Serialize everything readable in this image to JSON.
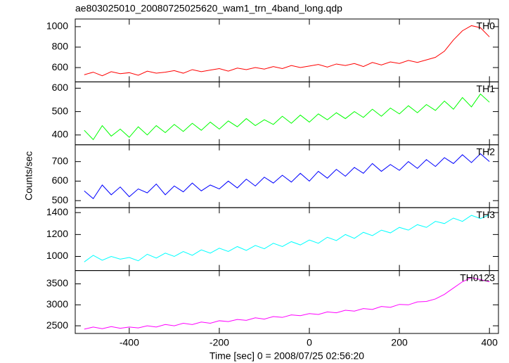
{
  "title": "ae803025010_20080725025620_wam1_trn_4band_long.qdp",
  "x_label": "Time [sec] 0 = 2008/07/25 02:56:20",
  "y_label": "Counts/sec",
  "chart_data": [
    {
      "type": "line",
      "xlim": [
        -520,
        420
      ],
      "ylim": [
        460,
        1075
      ],
      "xticks": [
        -400,
        -200,
        0,
        200,
        400
      ],
      "yticks": [
        600,
        800,
        1000
      ],
      "x": [
        -500,
        -480,
        -460,
        -440,
        -420,
        -400,
        -380,
        -360,
        -340,
        -320,
        -300,
        -280,
        -260,
        -240,
        -220,
        -200,
        -180,
        -160,
        -140,
        -120,
        -100,
        -80,
        -60,
        -40,
        -20,
        0,
        20,
        40,
        60,
        80,
        100,
        120,
        140,
        160,
        180,
        200,
        220,
        240,
        260,
        280,
        300,
        320,
        340,
        360,
        380,
        400
      ],
      "series": [
        {
          "name": "TH0",
          "color": "#ff0000",
          "values": [
            530,
            555,
            520,
            560,
            540,
            550,
            525,
            565,
            545,
            555,
            570,
            545,
            580,
            560,
            575,
            590,
            565,
            595,
            580,
            600,
            585,
            610,
            590,
            620,
            600,
            615,
            630,
            605,
            635,
            620,
            640,
            610,
            650,
            625,
            655,
            640,
            670,
            650,
            675,
            700,
            760,
            870,
            960,
            1010,
            990,
            900
          ]
        }
      ]
    },
    {
      "type": "line",
      "xlim": [
        -520,
        420
      ],
      "ylim": [
        358,
        627
      ],
      "xticks": [
        -400,
        -200,
        0,
        200,
        400
      ],
      "yticks": [
        400,
        500,
        600
      ],
      "x": [
        -500,
        -480,
        -460,
        -440,
        -420,
        -400,
        -380,
        -360,
        -340,
        -320,
        -300,
        -280,
        -260,
        -240,
        -220,
        -200,
        -180,
        -160,
        -140,
        -120,
        -100,
        -80,
        -60,
        -40,
        -20,
        0,
        20,
        40,
        60,
        80,
        100,
        120,
        140,
        160,
        180,
        200,
        220,
        240,
        260,
        280,
        300,
        320,
        340,
        360,
        380,
        400
      ],
      "series": [
        {
          "name": "TH1",
          "color": "#00ff00",
          "values": [
            420,
            380,
            440,
            395,
            425,
            390,
            435,
            400,
            440,
            410,
            445,
            415,
            450,
            420,
            455,
            425,
            460,
            435,
            470,
            440,
            465,
            445,
            480,
            450,
            485,
            455,
            490,
            465,
            495,
            470,
            500,
            475,
            510,
            480,
            515,
            490,
            525,
            495,
            530,
            505,
            545,
            510,
            560,
            520,
            575,
            540
          ]
        }
      ]
    },
    {
      "type": "line",
      "xlim": [
        -520,
        420
      ],
      "ylim": [
        464,
        786
      ],
      "xticks": [
        -400,
        -200,
        0,
        200,
        400
      ],
      "yticks": [
        500,
        600,
        700
      ],
      "x": [
        -500,
        -480,
        -460,
        -440,
        -420,
        -400,
        -380,
        -360,
        -340,
        -320,
        -300,
        -280,
        -260,
        -240,
        -220,
        -200,
        -180,
        -160,
        -140,
        -120,
        -100,
        -80,
        -60,
        -40,
        -20,
        0,
        20,
        40,
        60,
        80,
        100,
        120,
        140,
        160,
        180,
        200,
        220,
        240,
        260,
        280,
        300,
        320,
        340,
        360,
        380,
        400
      ],
      "series": [
        {
          "name": "TH2",
          "color": "#0000ff",
          "values": [
            550,
            510,
            580,
            530,
            570,
            520,
            560,
            540,
            585,
            530,
            575,
            545,
            590,
            550,
            580,
            560,
            600,
            565,
            610,
            575,
            620,
            590,
            630,
            595,
            640,
            600,
            650,
            615,
            660,
            625,
            670,
            640,
            690,
            650,
            685,
            655,
            700,
            665,
            710,
            675,
            720,
            690,
            735,
            695,
            740,
            700
          ]
        }
      ]
    },
    {
      "type": "line",
      "xlim": [
        -520,
        420
      ],
      "ylim": [
        871,
        1445
      ],
      "xticks": [
        -400,
        -200,
        0,
        200,
        400
      ],
      "yticks": [
        1000,
        1200,
        1400
      ],
      "x": [
        -500,
        -480,
        -460,
        -440,
        -420,
        -400,
        -380,
        -360,
        -340,
        -320,
        -300,
        -280,
        -260,
        -240,
        -220,
        -200,
        -180,
        -160,
        -140,
        -120,
        -100,
        -80,
        -60,
        -40,
        -20,
        0,
        20,
        40,
        60,
        80,
        100,
        120,
        140,
        160,
        180,
        200,
        220,
        240,
        260,
        280,
        300,
        320,
        340,
        360,
        380,
        400
      ],
      "series": [
        {
          "name": "TH3",
          "color": "#00ffff",
          "values": [
            950,
            1010,
            965,
            1000,
            975,
            990,
            960,
            1020,
            985,
            1030,
            1000,
            1045,
            1010,
            1060,
            1030,
            1075,
            1045,
            1090,
            1055,
            1100,
            1070,
            1120,
            1090,
            1135,
            1105,
            1150,
            1120,
            1175,
            1145,
            1200,
            1165,
            1220,
            1190,
            1240,
            1215,
            1265,
            1240,
            1290,
            1265,
            1320,
            1300,
            1350,
            1320,
            1375,
            1345,
            1380
          ]
        }
      ]
    },
    {
      "type": "line",
      "xlim": [
        -520,
        420
      ],
      "ylim": [
        2317,
        3817
      ],
      "xticks": [
        -400,
        -200,
        0,
        200,
        400
      ],
      "yticks": [
        2500,
        3000,
        3500
      ],
      "x": [
        -500,
        -480,
        -460,
        -440,
        -420,
        -400,
        -380,
        -360,
        -340,
        -320,
        -300,
        -280,
        -260,
        -240,
        -220,
        -200,
        -180,
        -160,
        -140,
        -120,
        -100,
        -80,
        -60,
        -40,
        -20,
        0,
        20,
        40,
        60,
        80,
        100,
        120,
        140,
        160,
        180,
        200,
        220,
        240,
        260,
        280,
        300,
        320,
        340,
        360,
        380,
        400
      ],
      "series": [
        {
          "name": "TH0123",
          "color": "#ff00ff",
          "values": [
            2420,
            2470,
            2430,
            2480,
            2440,
            2470,
            2450,
            2500,
            2470,
            2530,
            2500,
            2560,
            2530,
            2590,
            2560,
            2620,
            2600,
            2650,
            2630,
            2690,
            2660,
            2720,
            2700,
            2760,
            2740,
            2790,
            2770,
            2830,
            2810,
            2870,
            2850,
            2910,
            2890,
            2960,
            2940,
            3010,
            3000,
            3070,
            3080,
            3140,
            3250,
            3400,
            3550,
            3650,
            3600,
            3550
          ]
        }
      ]
    }
  ]
}
